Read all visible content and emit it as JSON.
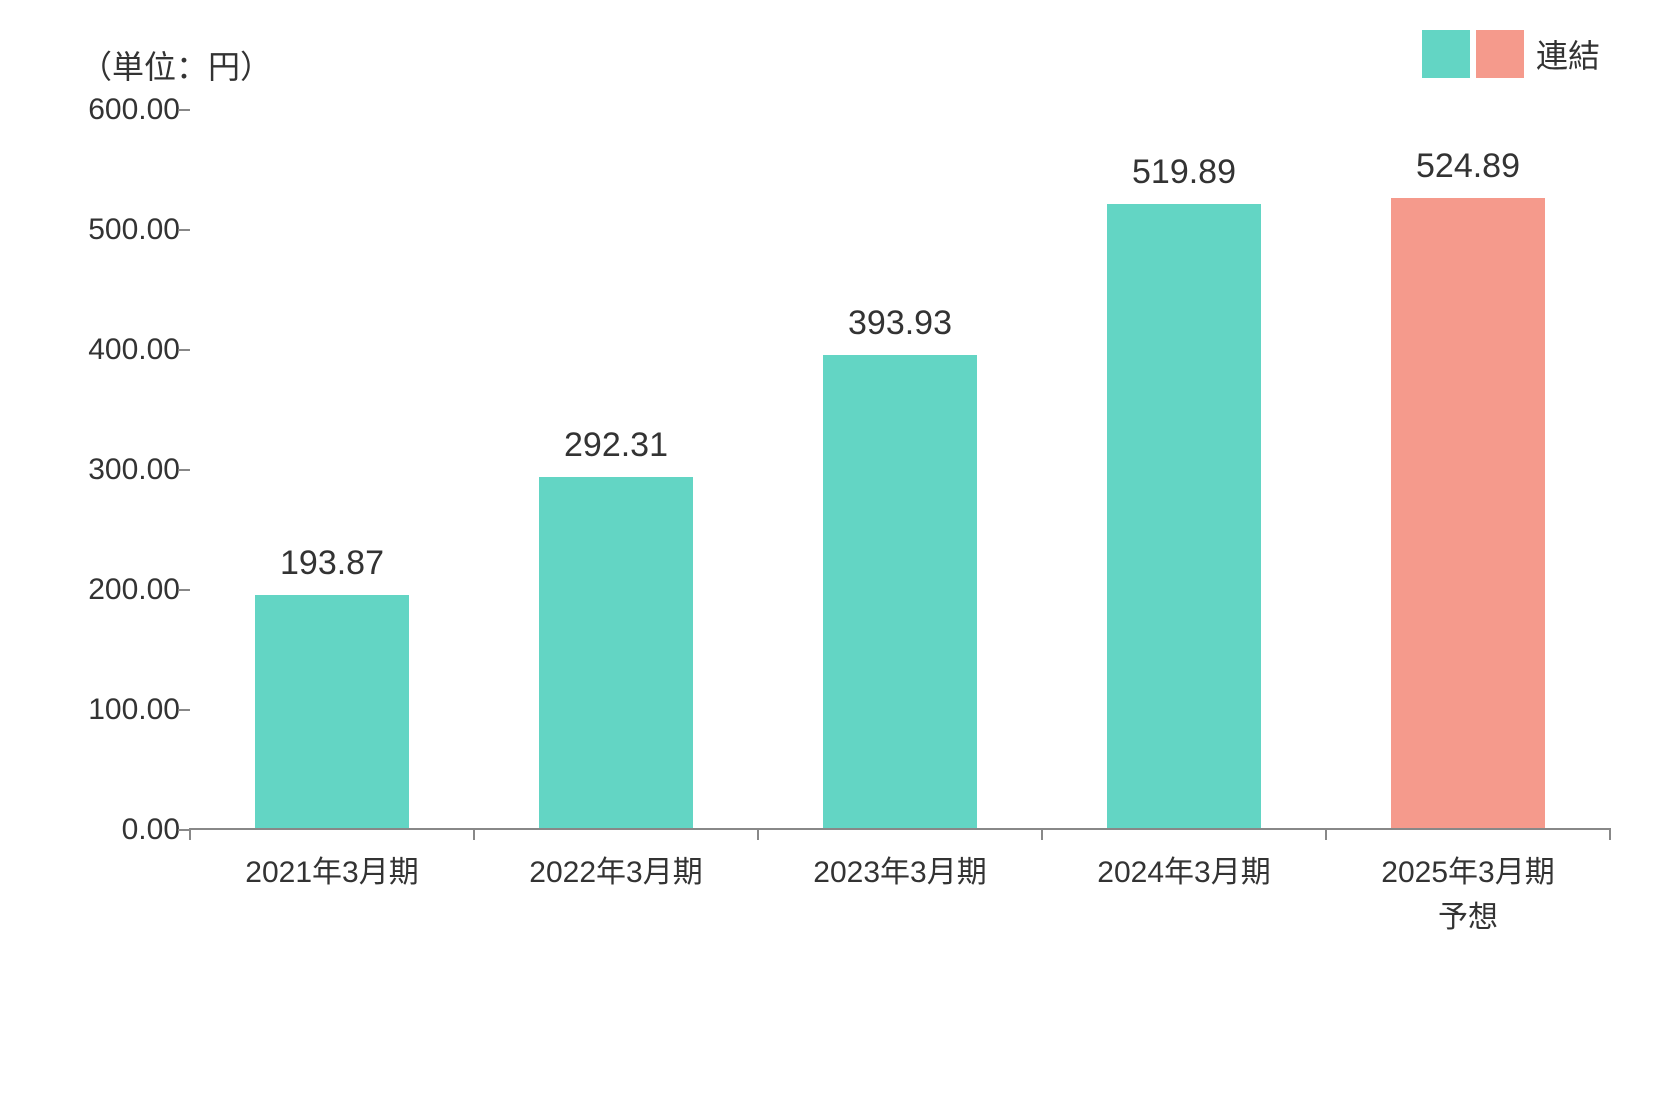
{
  "chart": {
    "type": "bar",
    "unit_label": "（単位：円）",
    "legend": {
      "swatches": [
        "#63d5c4",
        "#f59a8c"
      ],
      "label": "連結"
    },
    "y_axis": {
      "min": 0,
      "max": 600,
      "tick_step": 100,
      "tick_labels": [
        "0.00",
        "100.00",
        "200.00",
        "300.00",
        "400.00",
        "500.00",
        "600.00"
      ],
      "label_fontsize": 30,
      "tick_color": "#888888"
    },
    "categories": [
      "2021年3月期",
      "2022年3月期",
      "2023年3月期",
      "2024年3月期",
      "2025年3月期\n予想"
    ],
    "values": [
      193.87,
      292.31,
      393.93,
      519.89,
      524.89
    ],
    "value_labels": [
      "193.87",
      "292.31",
      "393.93",
      "519.89",
      "524.89"
    ],
    "bar_colors": [
      "#63d5c4",
      "#63d5c4",
      "#63d5c4",
      "#63d5c4",
      "#f59a8c"
    ],
    "bar_width_ratio": 0.54,
    "background_color": "#ffffff",
    "axis_color": "#888888",
    "text_color": "#333333",
    "value_label_fontsize": 34,
    "x_label_fontsize": 30,
    "unit_label_fontsize": 32,
    "legend_fontsize": 32
  }
}
